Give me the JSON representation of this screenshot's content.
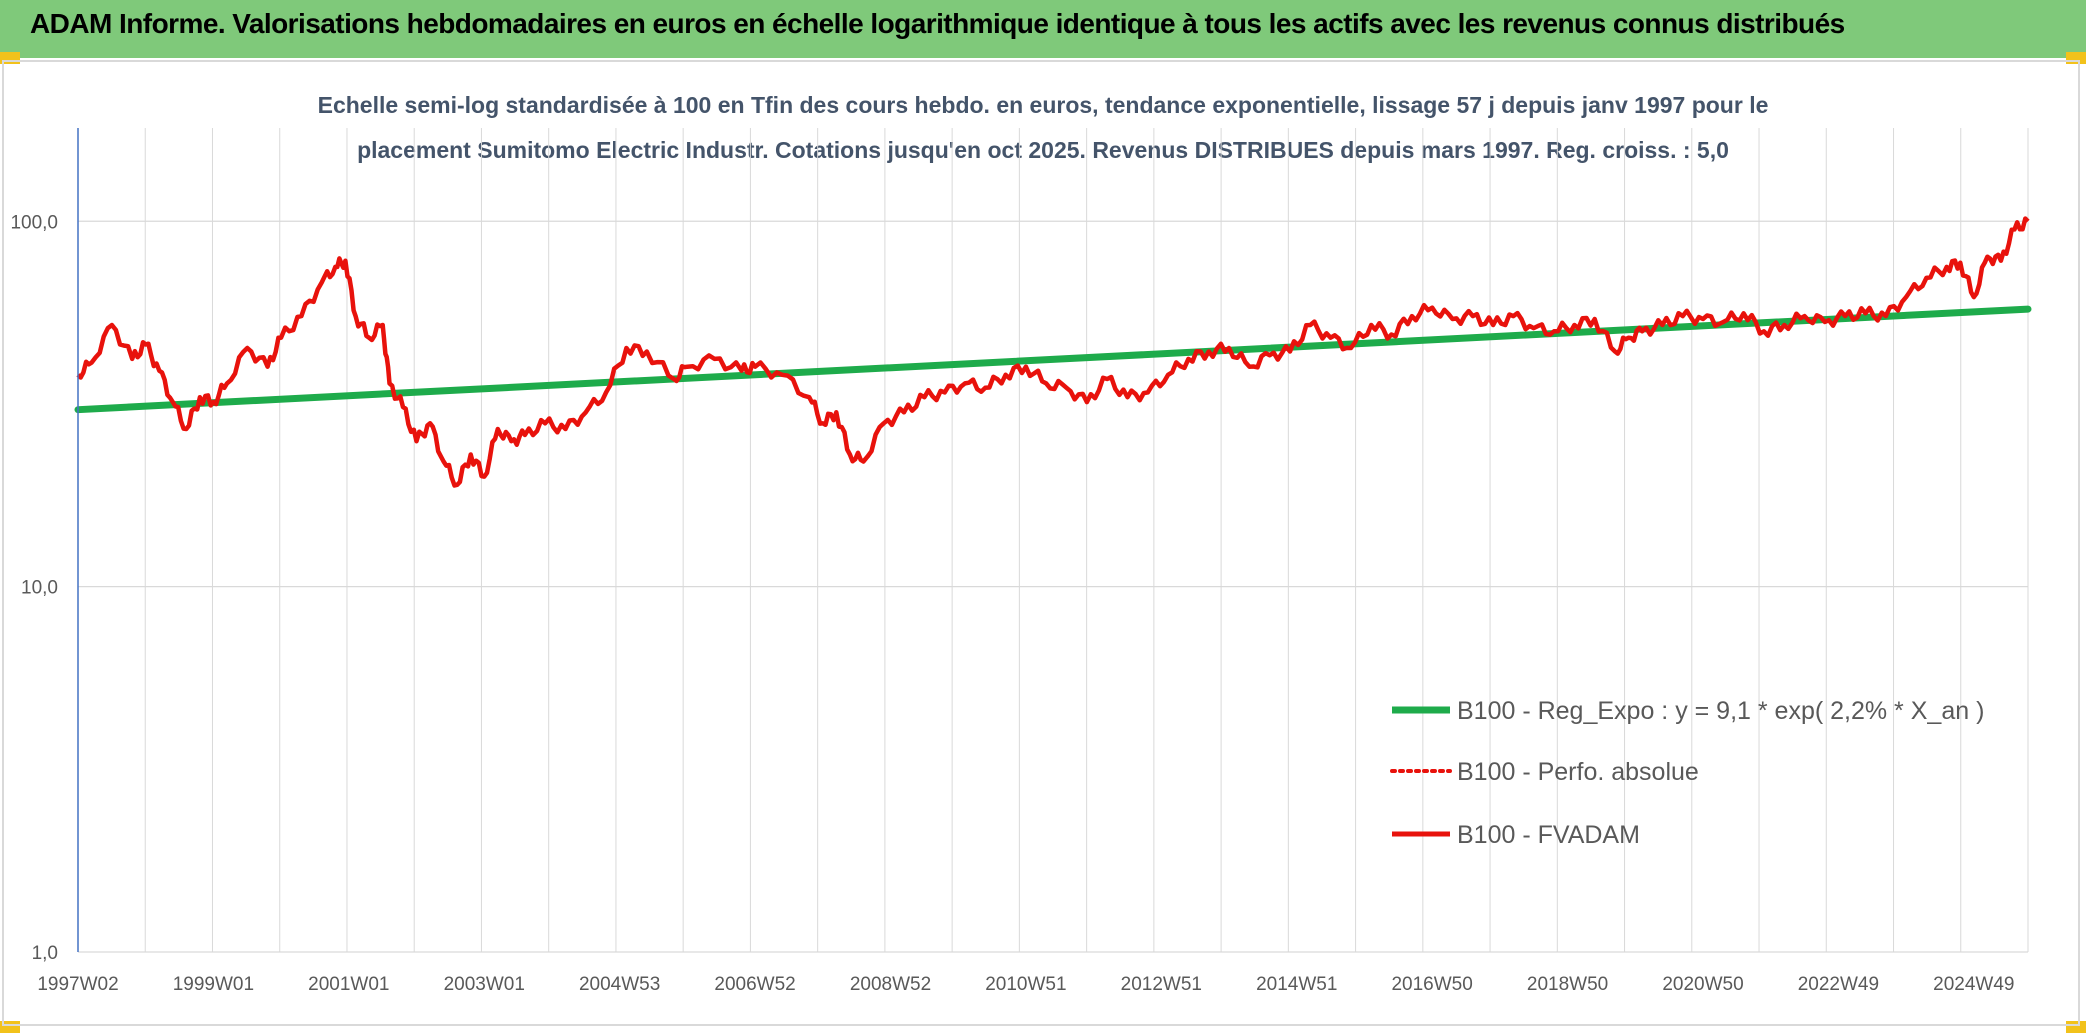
{
  "header": {
    "title": "ADAM Informe. Valorisations hebdomadaires en euros en échelle logarithmique identique à tous les actifs avec les revenus connus distribués"
  },
  "colors": {
    "header_bg": "#7fc97a",
    "accent_corner": "#f2c21b",
    "fvadam": "#e8120c",
    "regression": "#1eab4b",
    "grid": "#d9d9d9",
    "axis": "#4472c4"
  },
  "chart_data": {
    "type": "line",
    "scale": "log",
    "title_lines": [
      "Echelle semi-log standardisée à 100 en Tfin des cours hebdo. en euros, tendance exponentielle, lissage 57 j depuis janv 1997 pour le",
      "placement Sumitomo Electric Industr. Cotations jusqu'en oct 2025. Revenus DISTRIBUES depuis mars 1997. Reg. croiss. : 5,0"
    ],
    "y_ticks": [
      {
        "value": 100,
        "label": "100,0"
      },
      {
        "value": 10,
        "label": "10,0"
      },
      {
        "value": 1,
        "label": "1,0"
      }
    ],
    "ylim": [
      1,
      180
    ],
    "x_range": [
      1997.0,
      2025.8
    ],
    "x_ticks": [
      {
        "year": 1997.0,
        "label": "1997W02"
      },
      {
        "year": 1999.0,
        "label": "1999W01"
      },
      {
        "year": 2001.0,
        "label": "2001W01"
      },
      {
        "year": 2003.0,
        "label": "2003W01"
      },
      {
        "year": 2005.0,
        "label": "2004W53"
      },
      {
        "year": 2007.0,
        "label": "2006W52"
      },
      {
        "year": 2009.0,
        "label": "2008W52"
      },
      {
        "year": 2011.0,
        "label": "2010W51"
      },
      {
        "year": 2013.0,
        "label": "2012W51"
      },
      {
        "year": 2015.0,
        "label": "2014W51"
      },
      {
        "year": 2017.0,
        "label": "2016W50"
      },
      {
        "year": 2019.0,
        "label": "2018W50"
      },
      {
        "year": 2021.0,
        "label": "2020W50"
      },
      {
        "year": 2023.0,
        "label": "2022W49"
      },
      {
        "year": 2025.0,
        "label": "2024W49"
      }
    ],
    "series": [
      {
        "name": "B100 - Reg_Expo : y = 9,1 * exp( 2,2% *  X_an )",
        "style": "solid-thick",
        "color": "#1eab4b",
        "x": [
          1997.0,
          2025.8
        ],
        "y": [
          30.5,
          57.5
        ]
      },
      {
        "name": "B100 - Perfo. absolue",
        "style": "dotted",
        "color": "#e8120c",
        "x": [],
        "y": []
      },
      {
        "name": "B100 - FVADAM",
        "style": "solid",
        "color": "#e8120c",
        "x": [
          1997.0,
          1997.2,
          1997.5,
          1997.8,
          1998.0,
          1998.2,
          1998.4,
          1998.6,
          1998.8,
          1999.0,
          1999.2,
          1999.5,
          1999.8,
          2000.0,
          2000.3,
          2000.6,
          2000.8,
          2000.95,
          2001.1,
          2001.3,
          2001.5,
          2001.6,
          2001.8,
          2002.0,
          2002.2,
          2002.4,
          2002.6,
          2002.8,
          2003.0,
          2003.2,
          2003.4,
          2003.6,
          2003.9,
          2004.2,
          2004.5,
          2004.8,
          2005.1,
          2005.4,
          2005.8,
          2006.0,
          2006.4,
          2006.8,
          2007.0,
          2007.4,
          2007.8,
          2008.0,
          2008.2,
          2008.4,
          2008.6,
          2008.9,
          2009.2,
          2009.5,
          2009.8,
          2010.1,
          2010.4,
          2010.7,
          2011.0,
          2011.3,
          2011.6,
          2011.9,
          2012.2,
          2012.5,
          2012.8,
          2013.1,
          2013.4,
          2013.7,
          2014.0,
          2014.3,
          2014.6,
          2014.9,
          2015.2,
          2015.5,
          2015.8,
          2016.1,
          2016.4,
          2016.7,
          2017.0,
          2017.3,
          2017.6,
          2017.9,
          2018.2,
          2018.5,
          2018.8,
          2019.1,
          2019.4,
          2019.7,
          2019.9,
          2020.1,
          2020.4,
          2020.7,
          2021.0,
          2021.3,
          2021.6,
          2021.9,
          2022.2,
          2022.5,
          2022.8,
          2023.1,
          2023.4,
          2023.7,
          2024.0,
          2024.3,
          2024.6,
          2024.8,
          2025.0,
          2025.2,
          2025.4,
          2025.6,
          2025.8
        ],
        "y": [
          38,
          41,
          52,
          42,
          46,
          39,
          32,
          27,
          33,
          32,
          36,
          45,
          40,
          48,
          55,
          68,
          75,
          78,
          55,
          48,
          52,
          36,
          31,
          25,
          28,
          22,
          19,
          23,
          20,
          27,
          25,
          26,
          28,
          27,
          30,
          34,
          45,
          44,
          37,
          40,
          42,
          39,
          40,
          38,
          33,
          28,
          30,
          23,
          22,
          28,
          30,
          33,
          34,
          36,
          35,
          38,
          40,
          36,
          35,
          32,
          37,
          33,
          34,
          38,
          42,
          44,
          45,
          40,
          43,
          44,
          52,
          48,
          45,
          52,
          49,
          55,
          58,
          54,
          55,
          52,
          55,
          51,
          50,
          52,
          54,
          44,
          48,
          50,
          52,
          55,
          54,
          53,
          56,
          50,
          52,
          55,
          53,
          55,
          56,
          55,
          62,
          70,
          75,
          77,
          62,
          80,
          78,
          95,
          100
        ]
      }
    ],
    "legend_position": "bottom-right"
  }
}
